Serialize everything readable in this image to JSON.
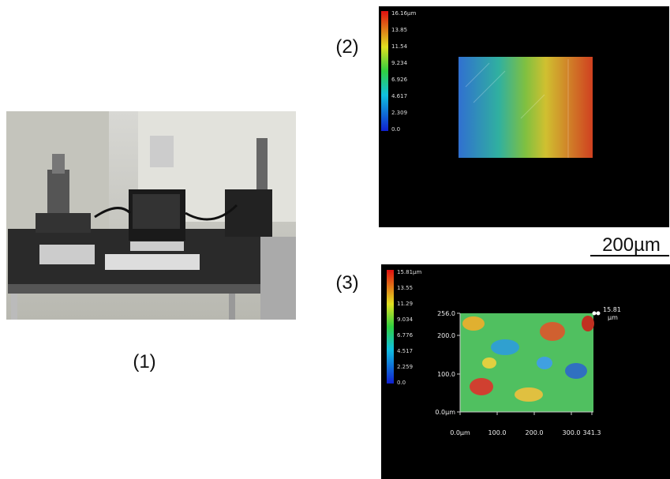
{
  "panels": [
    {
      "label": "(1)"
    },
    {
      "label": "(2)",
      "colorbar": [
        "16.16µm",
        "13.85",
        "11.54",
        "9.234",
        "6.926",
        "4.617",
        "2.309",
        "0.0"
      ]
    },
    {
      "label": "(3)",
      "colorbar": [
        "15.81µm",
        "13.55",
        "11.29",
        "9.034",
        "6.776",
        "4.517",
        "2.259",
        "0.0"
      ],
      "y_axis": [
        "256.0",
        "200.0",
        "100.0",
        "0.0µm"
      ],
      "x_axis": [
        "0.0µm",
        "100.0",
        "200.0",
        "300.0",
        "341.3"
      ],
      "marker": {
        "value": "15.81",
        "unit": "µm"
      }
    }
  ],
  "scale_bar": "200µm"
}
